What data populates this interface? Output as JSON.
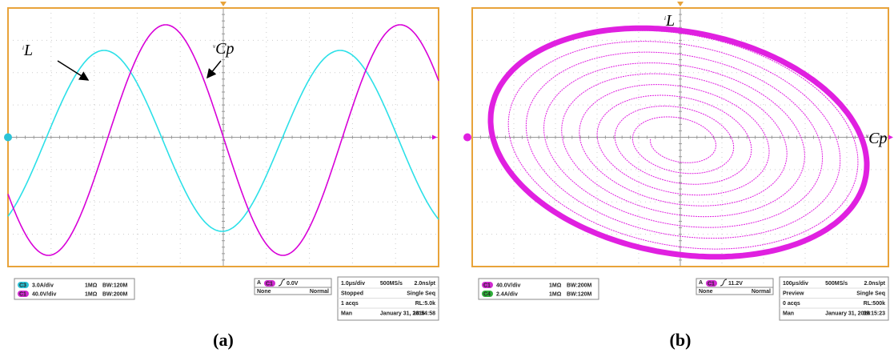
{
  "panels": [
    {
      "caption": "(a)",
      "current_label": {
        "symbol": "i",
        "sub": "L"
      },
      "voltage_label": {
        "symbol": "v",
        "sub": "Cp"
      },
      "channels": [
        {
          "badge": "C3",
          "scale": "3.0A/div",
          "coupling": "1MΩ",
          "bandwidth": "BW:120M"
        },
        {
          "badge": "C1",
          "scale": "40.0V/div",
          "coupling": "1MΩ",
          "bandwidth": "BW:200M"
        }
      ],
      "trigger": {
        "mode": "A",
        "source": "C1",
        "level": "0.0V",
        "coupling": "None",
        "type": "Normal"
      },
      "timebase": [
        [
          "1.0μs/div",
          "500MS/s",
          "2.0ns/pt"
        ],
        [
          "Stopped",
          "Single Seq"
        ],
        [
          "1 acqs",
          "RL:5.0k"
        ],
        [
          "Man",
          "January 31, 2016",
          "18:54:58"
        ]
      ]
    },
    {
      "caption": "(b)",
      "current_label": {
        "symbol": "i",
        "sub": "L"
      },
      "voltage_label": {
        "symbol": "v",
        "sub": "Cp"
      },
      "channels": [
        {
          "badge": "C1",
          "scale": "40.0V/div",
          "coupling": "1MΩ",
          "bandwidth": "BW:200M"
        },
        {
          "badge": "C4",
          "scale": "2.4A/div",
          "coupling": "1MΩ",
          "bandwidth": "BW:120M"
        }
      ],
      "trigger": {
        "mode": "A",
        "source": "C1",
        "level": "11.2V",
        "coupling": "None",
        "type": "Normal"
      },
      "timebase": [
        [
          "100μs/div",
          "500MS/s",
          "2.0ns/pt"
        ],
        [
          "Preview",
          "Single Seq"
        ],
        [
          "0 acqs",
          "RL:500k"
        ],
        [
          "Man",
          "January 31, 2016",
          "19:15:23"
        ]
      ]
    }
  ]
}
